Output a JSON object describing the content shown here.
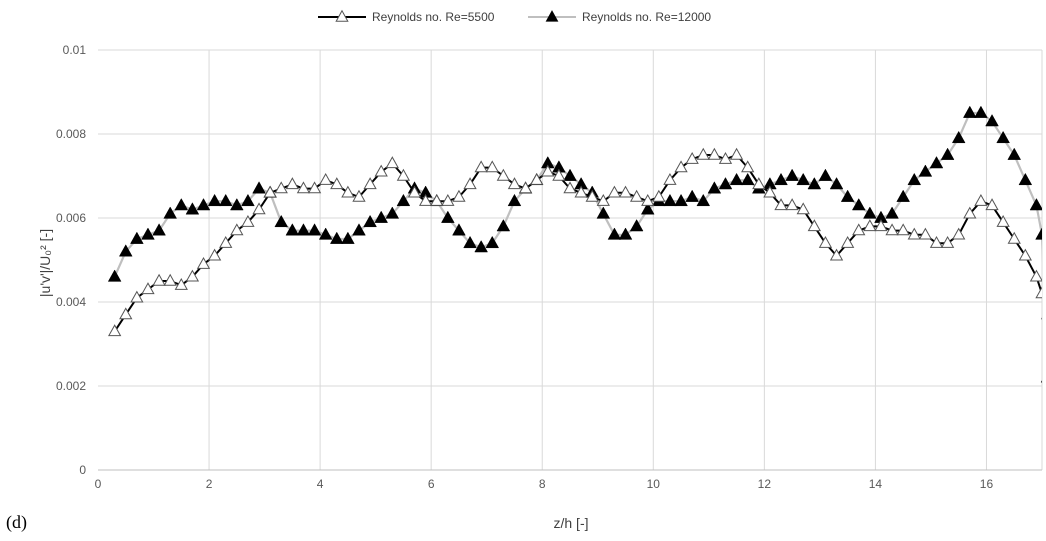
{
  "panel_label": "(d)",
  "chart_data": {
    "type": "line",
    "title": "",
    "xlabel": "z/h [-]",
    "ylabel": "|u'v'|/U₀² [-]",
    "xlim": [
      0,
      17
    ],
    "ylim": [
      0,
      0.01
    ],
    "xticks": [
      "0",
      "2",
      "4",
      "6",
      "8",
      "10",
      "12",
      "14",
      "16"
    ],
    "yticks": [
      "0",
      "0.002",
      "0.004",
      "0.006",
      "0.008",
      "0.01"
    ],
    "grid": true,
    "legend_position": "top-center",
    "series": [
      {
        "name": "Reynolds no.   Re=5500",
        "color": "#000000",
        "marker": "open-triangle",
        "points": [
          [
            0.3,
            0.0033
          ],
          [
            0.5,
            0.0037
          ],
          [
            0.7,
            0.0041
          ],
          [
            0.9,
            0.0043
          ],
          [
            1.1,
            0.0045
          ],
          [
            1.3,
            0.0045
          ],
          [
            1.5,
            0.0044
          ],
          [
            1.7,
            0.0046
          ],
          [
            1.9,
            0.0049
          ],
          [
            2.1,
            0.0051
          ],
          [
            2.3,
            0.0054
          ],
          [
            2.5,
            0.0057
          ],
          [
            2.7,
            0.0059
          ],
          [
            2.9,
            0.0062
          ],
          [
            3.1,
            0.0066
          ],
          [
            3.3,
            0.0067
          ],
          [
            3.5,
            0.0068
          ],
          [
            3.7,
            0.0067
          ],
          [
            3.9,
            0.0067
          ],
          [
            4.1,
            0.0069
          ],
          [
            4.3,
            0.0068
          ],
          [
            4.5,
            0.0066
          ],
          [
            4.7,
            0.0065
          ],
          [
            4.9,
            0.0068
          ],
          [
            5.1,
            0.0071
          ],
          [
            5.3,
            0.0073
          ],
          [
            5.5,
            0.007
          ],
          [
            5.7,
            0.0066
          ],
          [
            5.9,
            0.0064
          ],
          [
            6.1,
            0.0064
          ],
          [
            6.3,
            0.0064
          ],
          [
            6.5,
            0.0065
          ],
          [
            6.7,
            0.0068
          ],
          [
            6.9,
            0.0072
          ],
          [
            7.1,
            0.0072
          ],
          [
            7.3,
            0.007
          ],
          [
            7.5,
            0.0068
          ],
          [
            7.7,
            0.0067
          ],
          [
            7.9,
            0.0069
          ],
          [
            8.1,
            0.0071
          ],
          [
            8.3,
            0.007
          ],
          [
            8.5,
            0.0067
          ],
          [
            8.7,
            0.0066
          ],
          [
            8.9,
            0.0065
          ],
          [
            9.1,
            0.0064
          ],
          [
            9.3,
            0.0066
          ],
          [
            9.5,
            0.0066
          ],
          [
            9.7,
            0.0065
          ],
          [
            9.9,
            0.0064
          ],
          [
            10.1,
            0.0065
          ],
          [
            10.3,
            0.0069
          ],
          [
            10.5,
            0.0072
          ],
          [
            10.7,
            0.0074
          ],
          [
            10.9,
            0.0075
          ],
          [
            11.1,
            0.0075
          ],
          [
            11.3,
            0.0074
          ],
          [
            11.5,
            0.0075
          ],
          [
            11.7,
            0.0072
          ],
          [
            11.9,
            0.0068
          ],
          [
            12.1,
            0.0066
          ],
          [
            12.3,
            0.0063
          ],
          [
            12.5,
            0.0063
          ],
          [
            12.7,
            0.0062
          ],
          [
            12.9,
            0.0058
          ],
          [
            13.1,
            0.0054
          ],
          [
            13.3,
            0.0051
          ],
          [
            13.5,
            0.0054
          ],
          [
            13.7,
            0.0057
          ],
          [
            13.9,
            0.0058
          ],
          [
            14.1,
            0.0058
          ],
          [
            14.3,
            0.0057
          ],
          [
            14.5,
            0.0057
          ],
          [
            14.7,
            0.0056
          ],
          [
            14.9,
            0.0056
          ],
          [
            15.1,
            0.0054
          ],
          [
            15.3,
            0.0054
          ],
          [
            15.5,
            0.0056
          ],
          [
            15.7,
            0.0061
          ],
          [
            15.9,
            0.0064
          ],
          [
            16.1,
            0.0063
          ],
          [
            16.3,
            0.0059
          ],
          [
            16.5,
            0.0055
          ],
          [
            16.7,
            0.0051
          ],
          [
            16.9,
            0.0046
          ],
          [
            17.0,
            0.0042
          ],
          [
            17.1,
            0.0037
          ]
        ]
      },
      {
        "name": "Reynolds no.   Re=12000",
        "color": "#bfbfbf",
        "marker": "filled-triangle",
        "points": [
          [
            0.3,
            0.0046
          ],
          [
            0.5,
            0.0052
          ],
          [
            0.7,
            0.0055
          ],
          [
            0.9,
            0.0056
          ],
          [
            1.1,
            0.0057
          ],
          [
            1.3,
            0.0061
          ],
          [
            1.5,
            0.0063
          ],
          [
            1.7,
            0.0062
          ],
          [
            1.9,
            0.0063
          ],
          [
            2.1,
            0.0064
          ],
          [
            2.3,
            0.0064
          ],
          [
            2.5,
            0.0063
          ],
          [
            2.7,
            0.0064
          ],
          [
            2.9,
            0.0067
          ],
          [
            3.1,
            0.0066
          ],
          [
            3.3,
            0.0059
          ],
          [
            3.5,
            0.0057
          ],
          [
            3.7,
            0.0057
          ],
          [
            3.9,
            0.0057
          ],
          [
            4.1,
            0.0056
          ],
          [
            4.3,
            0.0055
          ],
          [
            4.5,
            0.0055
          ],
          [
            4.7,
            0.0057
          ],
          [
            4.9,
            0.0059
          ],
          [
            5.1,
            0.006
          ],
          [
            5.3,
            0.0061
          ],
          [
            5.5,
            0.0064
          ],
          [
            5.7,
            0.0067
          ],
          [
            5.9,
            0.0066
          ],
          [
            6.1,
            0.0064
          ],
          [
            6.3,
            0.006
          ],
          [
            6.5,
            0.0057
          ],
          [
            6.7,
            0.0054
          ],
          [
            6.9,
            0.0053
          ],
          [
            7.1,
            0.0054
          ],
          [
            7.3,
            0.0058
          ],
          [
            7.5,
            0.0064
          ],
          [
            7.7,
            0.0067
          ],
          [
            7.9,
            0.0069
          ],
          [
            8.1,
            0.0073
          ],
          [
            8.3,
            0.0072
          ],
          [
            8.5,
            0.007
          ],
          [
            8.7,
            0.0068
          ],
          [
            8.9,
            0.0066
          ],
          [
            9.1,
            0.0061
          ],
          [
            9.3,
            0.0056
          ],
          [
            9.5,
            0.0056
          ],
          [
            9.7,
            0.0058
          ],
          [
            9.9,
            0.0062
          ],
          [
            10.1,
            0.0064
          ],
          [
            10.3,
            0.0064
          ],
          [
            10.5,
            0.0064
          ],
          [
            10.7,
            0.0065
          ],
          [
            10.9,
            0.0064
          ],
          [
            11.1,
            0.0067
          ],
          [
            11.3,
            0.0068
          ],
          [
            11.5,
            0.0069
          ],
          [
            11.7,
            0.0069
          ],
          [
            11.9,
            0.0067
          ],
          [
            12.1,
            0.0068
          ],
          [
            12.3,
            0.0069
          ],
          [
            12.5,
            0.007
          ],
          [
            12.7,
            0.0069
          ],
          [
            12.9,
            0.0068
          ],
          [
            13.1,
            0.007
          ],
          [
            13.3,
            0.0068
          ],
          [
            13.5,
            0.0065
          ],
          [
            13.7,
            0.0063
          ],
          [
            13.9,
            0.0061
          ],
          [
            14.1,
            0.006
          ],
          [
            14.3,
            0.0061
          ],
          [
            14.5,
            0.0065
          ],
          [
            14.7,
            0.0069
          ],
          [
            14.9,
            0.0071
          ],
          [
            15.1,
            0.0073
          ],
          [
            15.3,
            0.0075
          ],
          [
            15.5,
            0.0079
          ],
          [
            15.7,
            0.0085
          ],
          [
            15.9,
            0.0085
          ],
          [
            16.1,
            0.0083
          ],
          [
            16.3,
            0.0079
          ],
          [
            16.5,
            0.0075
          ],
          [
            16.7,
            0.0069
          ],
          [
            16.9,
            0.0063
          ],
          [
            17.0,
            0.0056
          ],
          [
            17.1,
            0.0022
          ]
        ]
      }
    ]
  }
}
